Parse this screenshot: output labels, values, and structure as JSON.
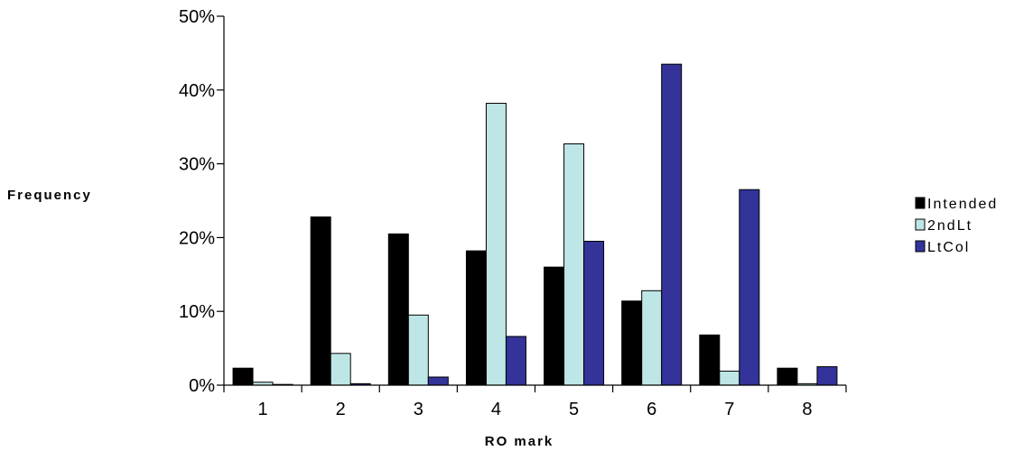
{
  "chart_data": {
    "type": "bar",
    "title": "",
    "xlabel": "RO mark",
    "ylabel": "Frequency",
    "categories": [
      "1",
      "2",
      "3",
      "4",
      "5",
      "6",
      "7",
      "8"
    ],
    "ylim": [
      0,
      0.5
    ],
    "yticks": [
      "0%",
      "10%",
      "20%",
      "30%",
      "40%",
      "50%"
    ],
    "legend_position": "right",
    "grid": false,
    "series": [
      {
        "name": "Intended",
        "color": "#000000",
        "values": [
          0.023,
          0.228,
          0.205,
          0.182,
          0.16,
          0.114,
          0.068,
          0.023
        ]
      },
      {
        "name": "2ndLt",
        "color": "#bfe6e6",
        "values": [
          0.004,
          0.043,
          0.095,
          0.382,
          0.327,
          0.128,
          0.019,
          0.002
        ]
      },
      {
        "name": "LtCol",
        "color": "#33339a",
        "values": [
          0.001,
          0.002,
          0.011,
          0.066,
          0.195,
          0.435,
          0.265,
          0.025
        ]
      }
    ]
  }
}
